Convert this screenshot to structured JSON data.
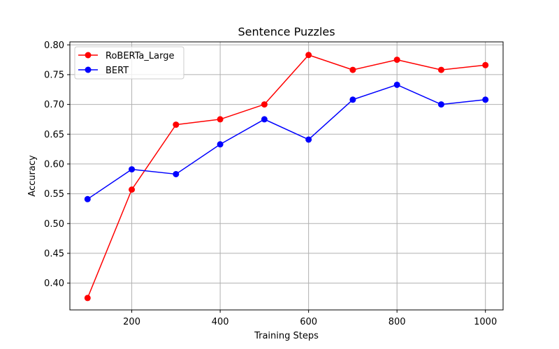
{
  "chart_data": {
    "type": "line",
    "title": "Sentence Puzzles",
    "xlabel": "Training Steps",
    "ylabel": "Accuracy",
    "x": [
      100,
      200,
      300,
      400,
      500,
      600,
      700,
      800,
      900,
      1000
    ],
    "xlim": [
      60,
      1040
    ],
    "ylim": [
      0.355,
      0.805
    ],
    "xticks": [
      200,
      400,
      600,
      800,
      1000
    ],
    "yticks": [
      0.4,
      0.45,
      0.5,
      0.55,
      0.6,
      0.65,
      0.7,
      0.75,
      0.8
    ],
    "xtick_labels": [
      "200",
      "400",
      "600",
      "800",
      "1000"
    ],
    "ytick_labels": [
      "0.40",
      "0.45",
      "0.50",
      "0.55",
      "0.60",
      "0.65",
      "0.70",
      "0.75",
      "0.80"
    ],
    "grid": true,
    "legend_position": "top-left",
    "series": [
      {
        "name": "RoBERTa_Large",
        "color": "#ff0000",
        "values": [
          0.375,
          0.557,
          0.666,
          0.675,
          0.7,
          0.783,
          0.758,
          0.775,
          0.758,
          0.766
        ]
      },
      {
        "name": "BERT",
        "color": "#0000ff",
        "values": [
          0.541,
          0.591,
          0.583,
          0.633,
          0.675,
          0.641,
          0.708,
          0.733,
          0.7,
          0.708
        ]
      }
    ]
  }
}
